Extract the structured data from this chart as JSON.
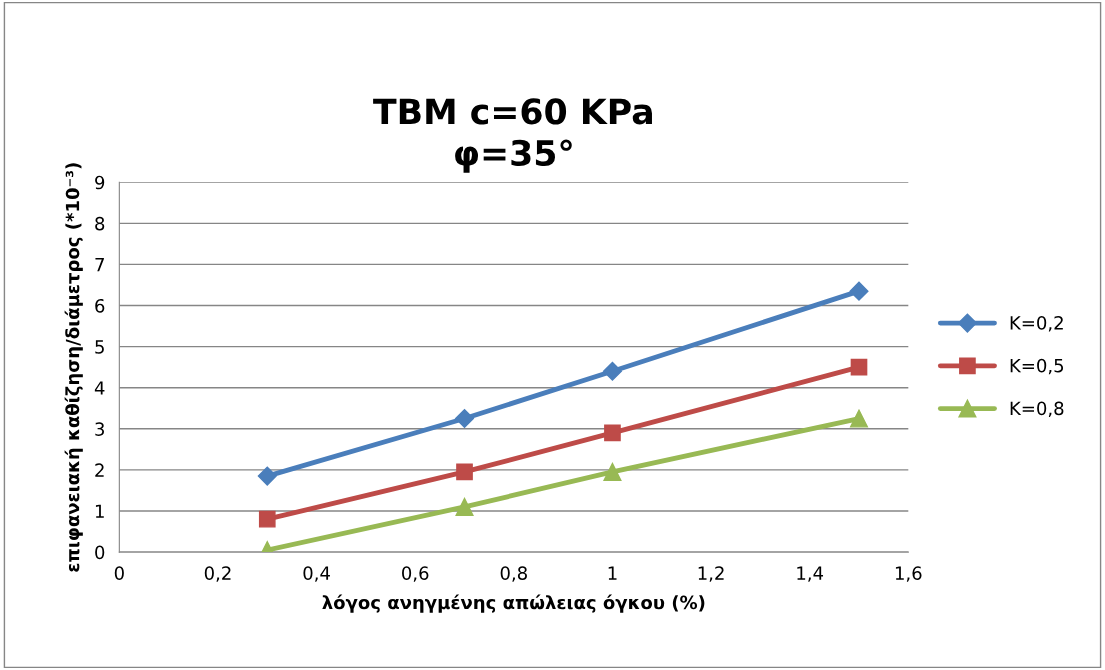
{
  "chart_data": {
    "type": "line",
    "title": "TBM c=60 KPa\nφ=35°",
    "xlabel": "λόγος ανηγμένης απώλειας όγκου (%)",
    "ylabel": "επιφανειακή καθίζηση/διάμετρος (*10⁻³)",
    "x": [
      0.3,
      0.7,
      1,
      1.5
    ],
    "series": [
      {
        "name": "K=0,2",
        "color": "#4a7ebb",
        "marker": "diamond",
        "values": [
          1.85,
          3.25,
          4.4,
          6.35
        ]
      },
      {
        "name": "K=0,5",
        "color": "#be4b48",
        "marker": "square",
        "values": [
          0.8,
          1.95,
          2.9,
          4.5
        ]
      },
      {
        "name": "K=0,8",
        "color": "#98b954",
        "marker": "triangle",
        "values": [
          0.05,
          1.1,
          1.95,
          3.25
        ]
      }
    ],
    "xlim": [
      0,
      1.6
    ],
    "ylim": [
      0,
      9
    ],
    "xticks": [
      0,
      {
        "value": 0.2,
        "label": "0,2"
      },
      {
        "value": 0.4,
        "label": "0,4"
      },
      {
        "value": 0.6,
        "label": "0,6"
      },
      {
        "value": 0.8,
        "label": "0,8"
      },
      1,
      {
        "value": 1.2,
        "label": "1,2"
      },
      {
        "value": 1.4,
        "label": "1,4"
      },
      {
        "value": 1.6,
        "label": "1,6"
      }
    ],
    "yticks": [
      0,
      1,
      2,
      3,
      4,
      5,
      6,
      7,
      8,
      9
    ],
    "grid": "y",
    "legend": "right",
    "line_style": "solid"
  }
}
